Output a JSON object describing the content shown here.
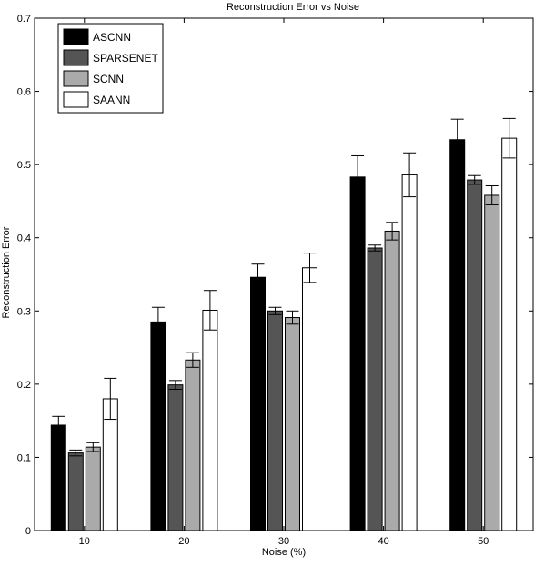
{
  "chart_data": {
    "type": "bar",
    "title": "Reconstruction Error vs Noise",
    "xlabel": "Noise (%)",
    "ylabel": "Reconstruction Error",
    "categories": [
      "10",
      "20",
      "30",
      "40",
      "50"
    ],
    "ylim": [
      0,
      0.7
    ],
    "yticks": [
      "0",
      "0.1",
      "0.2",
      "0.3",
      "0.4",
      "0.5",
      "0.6",
      "0.7"
    ],
    "grid": false,
    "legend_position": "top-left",
    "error_bars": true,
    "series": [
      {
        "name": "ASCNN",
        "color": "#000000",
        "values": [
          0.144,
          0.285,
          0.346,
          0.483,
          0.534
        ],
        "errors": [
          0.012,
          0.02,
          0.018,
          0.029,
          0.028
        ]
      },
      {
        "name": "SPARSENET",
        "color": "#555555",
        "values": [
          0.106,
          0.199,
          0.3,
          0.386,
          0.479
        ],
        "errors": [
          0.004,
          0.006,
          0.005,
          0.004,
          0.006
        ]
      },
      {
        "name": "SCNN",
        "color": "#aaaaaa",
        "values": [
          0.114,
          0.233,
          0.291,
          0.409,
          0.458
        ],
        "errors": [
          0.006,
          0.01,
          0.009,
          0.012,
          0.013
        ]
      },
      {
        "name": "SAANN",
        "color": "#ffffff",
        "values": [
          0.18,
          0.301,
          0.359,
          0.486,
          0.536
        ],
        "errors": [
          0.028,
          0.027,
          0.02,
          0.03,
          0.027
        ]
      }
    ]
  }
}
